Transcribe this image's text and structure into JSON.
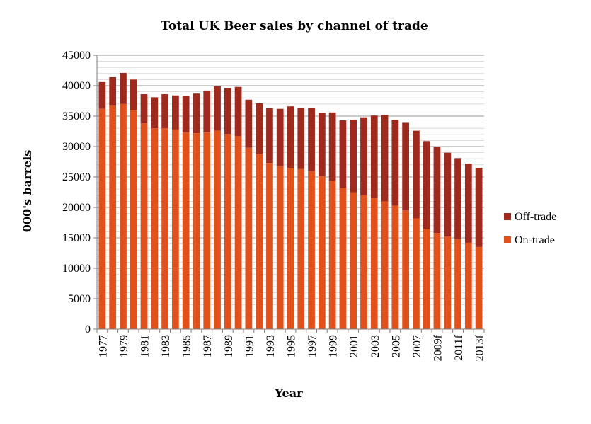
{
  "chart_data": {
    "type": "bar",
    "stacked": true,
    "title": "Total UK Beer sales by channel of trade",
    "xlabel": "Year",
    "ylabel": "000's barrels",
    "ylim": [
      0,
      45000
    ],
    "yticks": [
      0,
      5000,
      10000,
      15000,
      20000,
      25000,
      30000,
      35000,
      40000,
      45000
    ],
    "grid": true,
    "legend_position": "right",
    "categories": [
      "1977",
      "1978",
      "1979",
      "1980",
      "1981",
      "1982",
      "1983",
      "1984",
      "1985",
      "1986",
      "1987",
      "1988",
      "1989",
      "1990",
      "1991",
      "1992",
      "1993",
      "1994",
      "1995",
      "1996",
      "1997",
      "1998",
      "1999",
      "2000",
      "2001",
      "2002",
      "2003",
      "2004",
      "2005",
      "2006",
      "2007",
      "2008",
      "2009f",
      "2010",
      "2011f",
      "2012",
      "2013f"
    ],
    "tick_labels": [
      "1977",
      "",
      "1979",
      "",
      "1981",
      "",
      "1983",
      "",
      "1985",
      "",
      "1987",
      "",
      "1989",
      "",
      "1991",
      "",
      "1993",
      "",
      "1995",
      "",
      "1997",
      "",
      "1999",
      "",
      "2001",
      "",
      "2003",
      "",
      "2005",
      "",
      "2007",
      "",
      "2009f",
      "",
      "2011f",
      "",
      "2013f"
    ],
    "series": [
      {
        "name": "On-trade",
        "color": "#e0511b",
        "values": [
          36200,
          36700,
          37000,
          36000,
          33800,
          33000,
          33000,
          32800,
          32300,
          32200,
          32300,
          32600,
          32000,
          31700,
          29800,
          28800,
          27300,
          26700,
          26500,
          26300,
          25900,
          25100,
          24400,
          23200,
          22500,
          22000,
          21500,
          21000,
          20300,
          19500,
          18200,
          16500,
          15800,
          15200,
          14800,
          14200,
          13500
        ]
      },
      {
        "name": "Off-trade",
        "color": "#9e2a1e",
        "values": [
          4400,
          4700,
          5100,
          5000,
          4800,
          5100,
          5600,
          5600,
          6000,
          6500,
          6900,
          7300,
          7600,
          8100,
          7900,
          8300,
          9000,
          9500,
          10100,
          10100,
          10500,
          10400,
          11200,
          11100,
          11900,
          12800,
          13600,
          14200,
          14100,
          14400,
          14400,
          14400,
          14100,
          13800,
          13300,
          13000,
          13000
        ]
      }
    ]
  }
}
